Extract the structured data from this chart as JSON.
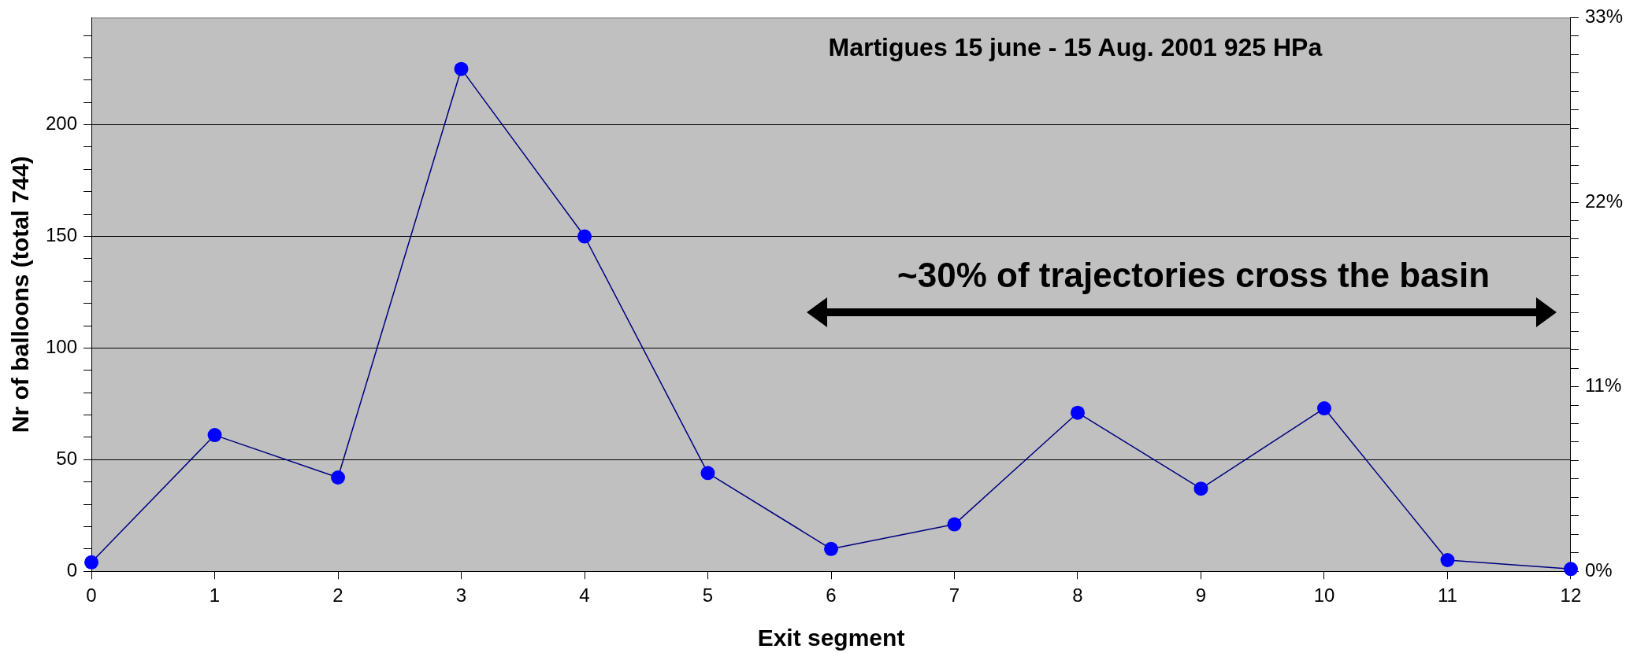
{
  "chart_data": {
    "type": "line",
    "title": "Martigues 15 june - 15 Aug. 2001 925 HPa",
    "xlabel": "Exit segment",
    "ylabel": "Nr of balloons (total 744)",
    "annotations": [
      "~30% of trajectories cross the basin"
    ],
    "x": [
      0,
      1,
      2,
      3,
      4,
      5,
      6,
      7,
      8,
      9,
      10,
      11,
      12
    ],
    "series": [
      {
        "color": "#000080",
        "colors": [
          "#0000ff",
          "#0000ff",
          "#0000ff",
          "#0000ff",
          "#0000ff",
          "#0000ff",
          "#0000ff",
          "#0000ff",
          "#0000ff",
          "#0000ff",
          "#0000ff",
          "#0000ff",
          "#0000ff"
        ],
        "values": [
          4,
          61,
          42,
          225,
          150,
          44,
          10,
          21,
          71,
          37,
          73,
          5,
          1
        ]
      }
    ],
    "xlim": [
      0,
      12
    ],
    "xticks": [
      0,
      1,
      2,
      3,
      4,
      5,
      6,
      7,
      8,
      9,
      10,
      11,
      12
    ],
    "ylim": [
      0,
      248
    ],
    "yticks": [
      0,
      {
        "value": 10,
        "label": null
      },
      {
        "value": 20,
        "label": null
      },
      {
        "value": 30,
        "label": null
      },
      {
        "value": 40,
        "label": null
      },
      50,
      {
        "value": 60,
        "label": null
      },
      {
        "value": 70,
        "label": null
      },
      {
        "value": 80,
        "label": null
      },
      {
        "value": 90,
        "label": null
      },
      100,
      {
        "value": 110,
        "label": null
      },
      {
        "value": 120,
        "label": null
      },
      {
        "value": 130,
        "label": null
      },
      {
        "value": 140,
        "label": null
      },
      150,
      {
        "value": 160,
        "label": null
      },
      {
        "value": 170,
        "label": null
      },
      {
        "value": 180,
        "label": null
      },
      {
        "value": 190,
        "label": null
      },
      200,
      {
        "value": 210,
        "label": null
      },
      {
        "value": 220,
        "label": null
      },
      {
        "value": 230,
        "label": null
      },
      {
        "value": 240,
        "label": null
      }
    ],
    "y2lim": [
      0,
      33
    ],
    "y2ticks": [
      {
        "value": 0,
        "label": "0%"
      },
      {
        "value": 1.1,
        "label": null
      },
      {
        "value": 2.2,
        "label": null
      },
      {
        "value": 3.3,
        "label": null
      },
      {
        "value": 4.4,
        "label": null
      },
      {
        "value": 5.5,
        "label": null
      },
      {
        "value": 6.6,
        "label": null
      },
      {
        "value": 7.7,
        "label": null
      },
      {
        "value": 8.8,
        "label": null
      },
      {
        "value": 9.9,
        "label": null
      },
      {
        "value": 11,
        "label": "11%"
      },
      {
        "value": 12.1,
        "label": null
      },
      {
        "value": 13.2,
        "label": null
      },
      {
        "value": 14.3,
        "label": null
      },
      {
        "value": 15.4,
        "label": null
      },
      {
        "value": 16.5,
        "label": null
      },
      {
        "value": 17.6,
        "label": null
      },
      {
        "value": 18.7,
        "label": null
      },
      {
        "value": 19.8,
        "label": null
      },
      {
        "value": 20.9,
        "label": null
      },
      {
        "value": 22,
        "label": "22%"
      },
      {
        "value": 23.1,
        "label": null
      },
      {
        "value": 24.2,
        "label": null
      },
      {
        "value": 25.3,
        "label": null
      },
      {
        "value": 26.4,
        "label": null
      },
      {
        "value": 27.5,
        "label": null
      },
      {
        "value": 28.6,
        "label": null
      },
      {
        "value": 29.7,
        "label": null
      },
      {
        "value": 30.8,
        "label": null
      },
      {
        "value": 31.9,
        "label": null
      },
      {
        "value": 33,
        "label": "33%"
      }
    ],
    "grid": "y",
    "legend": false,
    "marker": "circle",
    "line_style": "solid"
  }
}
